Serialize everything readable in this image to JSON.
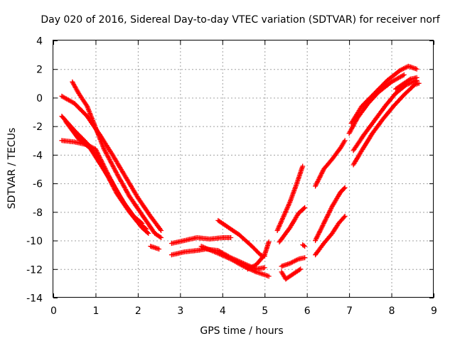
{
  "chart_data": {
    "type": "scatter",
    "title": "Day 020 of 2016, Sidereal Day-to-day VTEC variation (SDTVAR) for receiver norf",
    "xlabel": "GPS time / hours",
    "ylabel": "SDTVAR / TECUs",
    "xlim": [
      0,
      9
    ],
    "ylim": [
      -14,
      4
    ],
    "x_ticks": [
      "0",
      "1",
      "2",
      "3",
      "4",
      "5",
      "6",
      "7",
      "8",
      "9"
    ],
    "y_ticks": [
      "-14",
      "-12",
      "-10",
      "-8",
      "-6",
      "-4",
      "-2",
      "0",
      "2",
      "4"
    ],
    "grid": true,
    "legend": "none",
    "marker": "plus",
    "colors": {
      "series": "#ff0000",
      "grid": "#a0a0a0",
      "axis": "#000000"
    },
    "series": [
      {
        "points": [
          [
            0.2,
            0.1
          ],
          [
            0.5,
            -0.4
          ],
          [
            0.8,
            -1.3
          ],
          [
            1.1,
            -2.6
          ],
          [
            1.4,
            -4.0
          ],
          [
            1.7,
            -5.5
          ],
          [
            2.0,
            -7.0
          ],
          [
            2.3,
            -8.3
          ],
          [
            2.55,
            -9.3
          ]
        ]
      },
      {
        "points": [
          [
            0.45,
            1.1
          ],
          [
            0.6,
            0.3
          ],
          [
            0.8,
            -0.6
          ],
          [
            1.0,
            -2.1
          ],
          [
            1.2,
            -3.6
          ],
          [
            1.5,
            -5.3
          ],
          [
            1.8,
            -6.9
          ],
          [
            2.1,
            -8.2
          ],
          [
            2.4,
            -9.5
          ],
          [
            2.55,
            -9.8
          ]
        ]
      },
      {
        "points": [
          [
            0.2,
            -1.3
          ],
          [
            0.5,
            -2.3
          ],
          [
            0.8,
            -3.2
          ],
          [
            1.1,
            -4.6
          ],
          [
            1.4,
            -6.0
          ],
          [
            1.7,
            -7.5
          ],
          [
            2.0,
            -8.7
          ],
          [
            2.2,
            -9.2
          ]
        ]
      },
      {
        "points": [
          [
            0.3,
            -1.7
          ],
          [
            0.6,
            -2.9
          ],
          [
            0.9,
            -3.6
          ],
          [
            1.2,
            -5.0
          ],
          [
            1.5,
            -6.7
          ],
          [
            1.8,
            -8.0
          ],
          [
            2.1,
            -9.1
          ],
          [
            2.25,
            -9.5
          ]
        ]
      },
      {
        "points": [
          [
            0.2,
            -3.0
          ],
          [
            0.5,
            -3.1
          ],
          [
            0.8,
            -3.3
          ],
          [
            1.0,
            -3.6
          ],
          [
            1.3,
            -5.4
          ],
          [
            1.6,
            -7.1
          ],
          [
            1.9,
            -8.3
          ],
          [
            2.1,
            -8.8
          ]
        ]
      },
      {
        "points": [
          [
            2.3,
            -10.4
          ],
          [
            2.5,
            -10.6
          ]
        ]
      },
      {
        "points": [
          [
            2.8,
            -10.2
          ],
          [
            3.1,
            -10.0
          ],
          [
            3.4,
            -9.8
          ],
          [
            3.7,
            -9.9
          ],
          [
            4.0,
            -9.8
          ],
          [
            4.2,
            -9.8
          ]
        ]
      },
      {
        "points": [
          [
            2.8,
            -11.0
          ],
          [
            3.1,
            -10.8
          ],
          [
            3.4,
            -10.7
          ],
          [
            3.6,
            -10.6
          ],
          [
            3.9,
            -10.7
          ],
          [
            4.2,
            -11.2
          ],
          [
            4.5,
            -11.6
          ],
          [
            4.8,
            -12.0
          ],
          [
            5.0,
            -11.9
          ]
        ]
      },
      {
        "points": [
          [
            3.9,
            -8.6
          ],
          [
            4.1,
            -9.0
          ],
          [
            4.4,
            -9.6
          ],
          [
            4.7,
            -10.4
          ],
          [
            4.9,
            -11.0
          ],
          [
            5.0,
            -11.1
          ]
        ]
      },
      {
        "points": [
          [
            3.5,
            -10.4
          ],
          [
            3.9,
            -10.9
          ],
          [
            4.2,
            -11.3
          ],
          [
            4.5,
            -11.8
          ],
          [
            4.8,
            -12.2
          ],
          [
            5.1,
            -12.5
          ]
        ]
      },
      {
        "points": [
          [
            4.6,
            -12.0
          ],
          [
            4.8,
            -11.7
          ],
          [
            5.0,
            -11.0
          ],
          [
            5.1,
            -10.1
          ]
        ]
      },
      {
        "points": [
          [
            5.4,
            -12.2
          ],
          [
            5.5,
            -12.7
          ],
          [
            5.7,
            -12.3
          ],
          [
            5.85,
            -12.0
          ]
        ]
      },
      {
        "points": [
          [
            5.4,
            -11.8
          ],
          [
            5.6,
            -11.6
          ],
          [
            5.8,
            -11.3
          ],
          [
            5.95,
            -11.2
          ]
        ]
      },
      {
        "points": [
          [
            5.3,
            -9.3
          ],
          [
            5.45,
            -8.3
          ],
          [
            5.6,
            -7.3
          ],
          [
            5.75,
            -6.1
          ],
          [
            5.9,
            -4.8
          ]
        ]
      },
      {
        "points": [
          [
            5.35,
            -10.1
          ],
          [
            5.6,
            -9.1
          ],
          [
            5.8,
            -8.1
          ],
          [
            5.95,
            -7.7
          ]
        ]
      },
      {
        "points": [
          [
            5.9,
            -10.3
          ],
          [
            5.95,
            -10.4
          ]
        ]
      },
      {
        "points": [
          [
            6.2,
            -6.2
          ],
          [
            6.4,
            -5.0
          ],
          [
            6.6,
            -4.3
          ],
          [
            6.8,
            -3.5
          ],
          [
            6.9,
            -3.0
          ]
        ]
      },
      {
        "points": [
          [
            6.2,
            -11.0
          ],
          [
            6.4,
            -10.2
          ],
          [
            6.6,
            -9.5
          ],
          [
            6.75,
            -8.8
          ],
          [
            6.9,
            -8.3
          ]
        ]
      },
      {
        "points": [
          [
            6.2,
            -10.0
          ],
          [
            6.4,
            -8.8
          ],
          [
            6.6,
            -7.6
          ],
          [
            6.8,
            -6.6
          ],
          [
            6.9,
            -6.3
          ]
        ]
      },
      {
        "points": [
          [
            7.0,
            -2.5
          ],
          [
            7.2,
            -1.4
          ],
          [
            7.45,
            -0.4
          ],
          [
            7.7,
            0.4
          ],
          [
            8.0,
            1.1
          ],
          [
            8.3,
            1.6
          ]
        ]
      },
      {
        "points": [
          [
            7.05,
            -1.8
          ],
          [
            7.3,
            -0.6
          ],
          [
            7.6,
            0.3
          ],
          [
            7.9,
            1.2
          ],
          [
            8.2,
            1.9
          ],
          [
            8.4,
            2.2
          ],
          [
            8.6,
            2.0
          ]
        ]
      },
      {
        "points": [
          [
            7.1,
            -4.7
          ],
          [
            7.3,
            -3.7
          ],
          [
            7.55,
            -2.5
          ],
          [
            7.8,
            -1.5
          ],
          [
            8.05,
            -0.6
          ],
          [
            8.3,
            0.2
          ],
          [
            8.55,
            0.9
          ],
          [
            8.65,
            1.0
          ]
        ]
      },
      {
        "points": [
          [
            7.1,
            -3.7
          ],
          [
            7.35,
            -2.6
          ],
          [
            7.6,
            -1.6
          ],
          [
            7.85,
            -0.6
          ],
          [
            8.1,
            0.3
          ],
          [
            8.35,
            0.9
          ],
          [
            8.6,
            1.2
          ]
        ]
      },
      {
        "points": [
          [
            8.1,
            0.6
          ],
          [
            8.3,
            1.0
          ],
          [
            8.45,
            1.3
          ],
          [
            8.6,
            1.4
          ]
        ]
      }
    ]
  }
}
